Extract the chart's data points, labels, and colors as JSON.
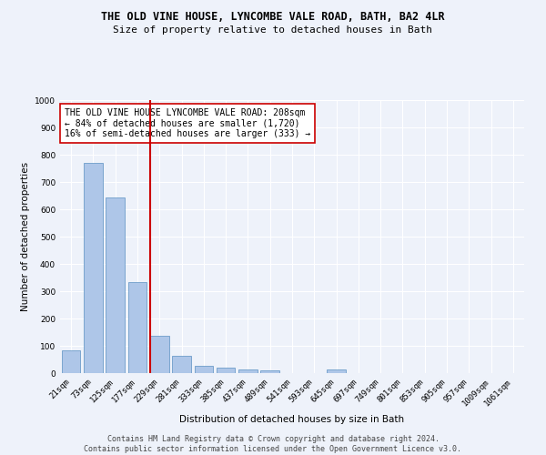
{
  "title": "THE OLD VINE HOUSE, LYNCOMBE VALE ROAD, BATH, BA2 4LR",
  "subtitle": "Size of property relative to detached houses in Bath",
  "xlabel": "Distribution of detached houses by size in Bath",
  "ylabel": "Number of detached properties",
  "categories": [
    "21sqm",
    "73sqm",
    "125sqm",
    "177sqm",
    "229sqm",
    "281sqm",
    "333sqm",
    "385sqm",
    "437sqm",
    "489sqm",
    "541sqm",
    "593sqm",
    "645sqm",
    "697sqm",
    "749sqm",
    "801sqm",
    "853sqm",
    "905sqm",
    "957sqm",
    "1009sqm",
    "1061sqm"
  ],
  "values": [
    83,
    770,
    645,
    335,
    137,
    62,
    27,
    20,
    15,
    10,
    0,
    0,
    12,
    0,
    0,
    0,
    0,
    0,
    0,
    0,
    0
  ],
  "bar_color": "#aec6e8",
  "bar_edge_color": "#5a8fc2",
  "vline_color": "#cc0000",
  "annotation_text": "THE OLD VINE HOUSE LYNCOMBE VALE ROAD: 208sqm\n← 84% of detached houses are smaller (1,720)\n16% of semi-detached houses are larger (333) →",
  "annotation_box_color": "#ffffff",
  "annotation_box_edge": "#cc0000",
  "ylim": [
    0,
    1000
  ],
  "yticks": [
    0,
    100,
    200,
    300,
    400,
    500,
    600,
    700,
    800,
    900,
    1000
  ],
  "footer": "Contains HM Land Registry data © Crown copyright and database right 2024.\nContains public sector information licensed under the Open Government Licence v3.0.",
  "bg_color": "#eef2fa",
  "plot_bg_color": "#eef2fa",
  "grid_color": "#ffffff",
  "title_fontsize": 8.5,
  "subtitle_fontsize": 8,
  "axis_label_fontsize": 7.5,
  "tick_fontsize": 6.5,
  "annotation_fontsize": 7,
  "footer_fontsize": 6
}
